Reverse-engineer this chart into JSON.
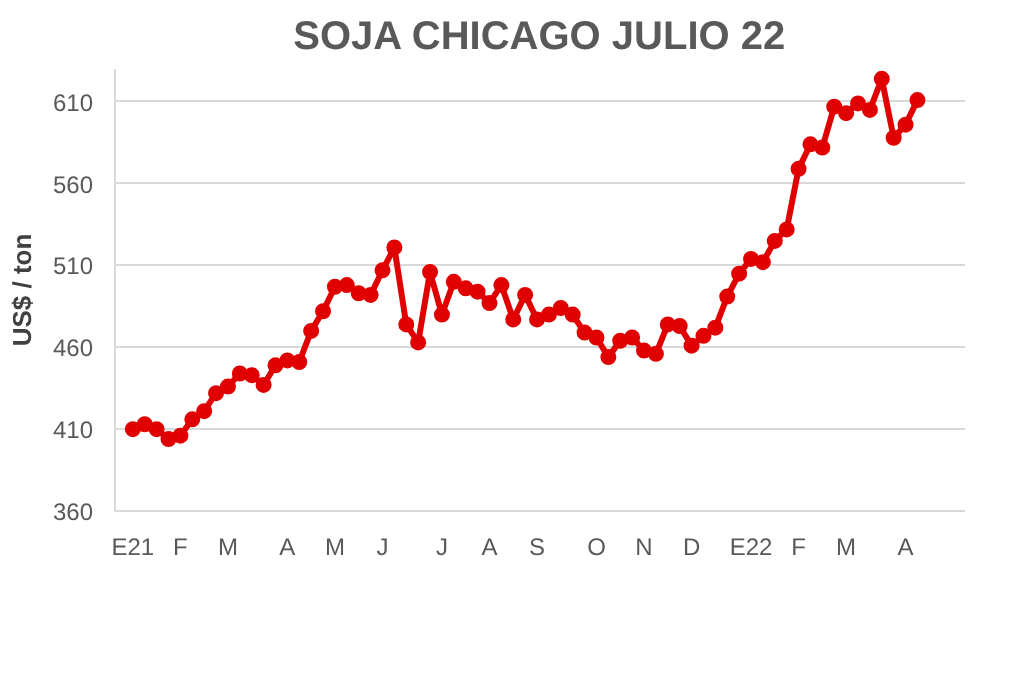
{
  "chart_data": {
    "type": "line",
    "title": "SOJA CHICAGO JULIO 22",
    "ylabel": "US$ / ton",
    "categories": [
      "E21",
      null,
      null,
      null,
      "F",
      null,
      null,
      null,
      "M",
      null,
      null,
      null,
      null,
      "A",
      null,
      null,
      null,
      "M",
      null,
      null,
      null,
      "J",
      null,
      null,
      null,
      null,
      "J",
      null,
      null,
      null,
      "A",
      null,
      null,
      null,
      "S",
      null,
      null,
      null,
      null,
      "O",
      null,
      null,
      null,
      "N",
      null,
      null,
      null,
      "D",
      null,
      null,
      null,
      null,
      "E22",
      null,
      null,
      null,
      "F",
      null,
      null,
      null,
      "M",
      null,
      null,
      null,
      null,
      "A",
      null
    ],
    "series": [
      {
        "color": "#e00000",
        "values": [
          410,
          413,
          410,
          404,
          406,
          416,
          421,
          432,
          436,
          444,
          443,
          437,
          449,
          452,
          451,
          470,
          482,
          497,
          498,
          493,
          492,
          507,
          521,
          474,
          463,
          506,
          480,
          500,
          496,
          494,
          487,
          498,
          477,
          492,
          477,
          480,
          484,
          480,
          469,
          466,
          454,
          464,
          466,
          458,
          456,
          474,
          473,
          461,
          467,
          472,
          491,
          505,
          514,
          512,
          525,
          532,
          569,
          584,
          582,
          607,
          603,
          609,
          605,
          624,
          588,
          596,
          611
        ]
      }
    ],
    "ylim": [
      360,
      630
    ],
    "yticks": [
      360,
      410,
      460,
      510,
      560,
      610
    ],
    "grid": "y",
    "marker": "circle",
    "line_style": "solid"
  }
}
